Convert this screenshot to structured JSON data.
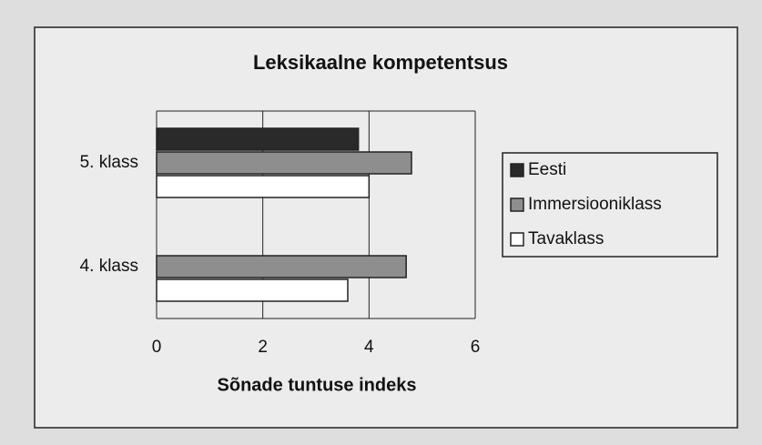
{
  "chart_data": {
    "type": "hbar",
    "title": "Leksikaalne kompetentsus",
    "x_label": "Sõnade tuntuse indeks",
    "categories": [
      "5. klass",
      "4. klass"
    ],
    "series": [
      {
        "name": "Eesti",
        "color": "#2a2a2a",
        "values": [
          3.8,
          null
        ]
      },
      {
        "name": "Immersiooniklass",
        "color": "#8e8e8e",
        "values": [
          4.8,
          4.7
        ]
      },
      {
        "name": "Tavaklass",
        "color": "#ffffff",
        "values": [
          4.0,
          3.6
        ]
      }
    ],
    "xlim": [
      0,
      6
    ],
    "xticks": [
      0,
      2,
      4,
      6
    ],
    "grid": true,
    "legend": "right"
  }
}
